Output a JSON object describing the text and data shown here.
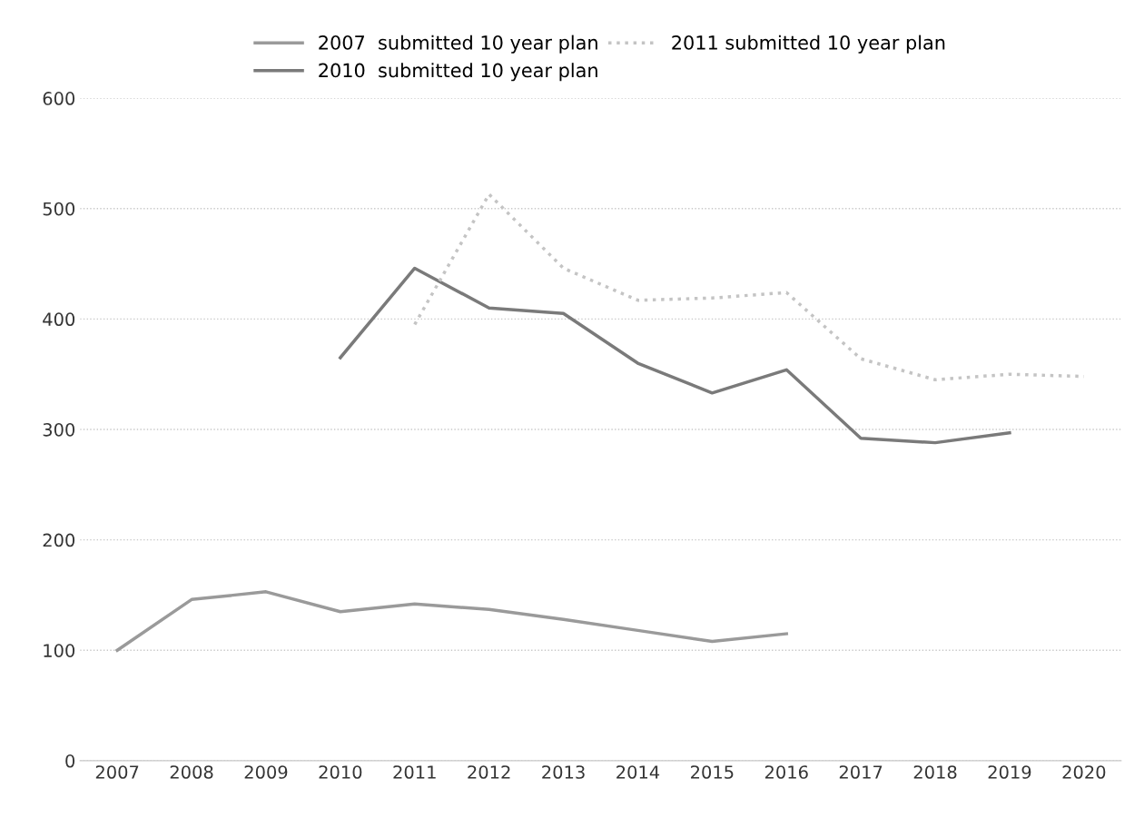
{
  "chart_data": {
    "type": "line",
    "categories": [
      "2007",
      "2008",
      "2009",
      "2010",
      "2011",
      "2012",
      "2013",
      "2014",
      "2015",
      "2016",
      "2017",
      "2018",
      "2019",
      "2020"
    ],
    "series": [
      {
        "name": "2007  submitted 10 year plan",
        "color": "#9a9a9a",
        "values": [
          100,
          146,
          153,
          135,
          142,
          137,
          128,
          118,
          108,
          115,
          null,
          null,
          null,
          null
        ]
      },
      {
        "name": "2010  submitted 10 year plan",
        "color": "#7a7a7a",
        "values": [
          null,
          null,
          null,
          365,
          446,
          410,
          405,
          360,
          333,
          354,
          292,
          288,
          297,
          null
        ]
      },
      {
        "name": "2011 submitted 10 year plan",
        "color": "#c4c4c4",
        "line_style": "dotted",
        "values": [
          null,
          null,
          null,
          null,
          395,
          513,
          446,
          417,
          419,
          424,
          364,
          345,
          350,
          348
        ]
      }
    ],
    "ylim": [
      0,
      600
    ],
    "yticks": [
      0,
      100,
      200,
      300,
      400,
      500,
      600
    ],
    "grid": "y",
    "legend": "top",
    "line_style": "solid",
    "marker": "none"
  }
}
